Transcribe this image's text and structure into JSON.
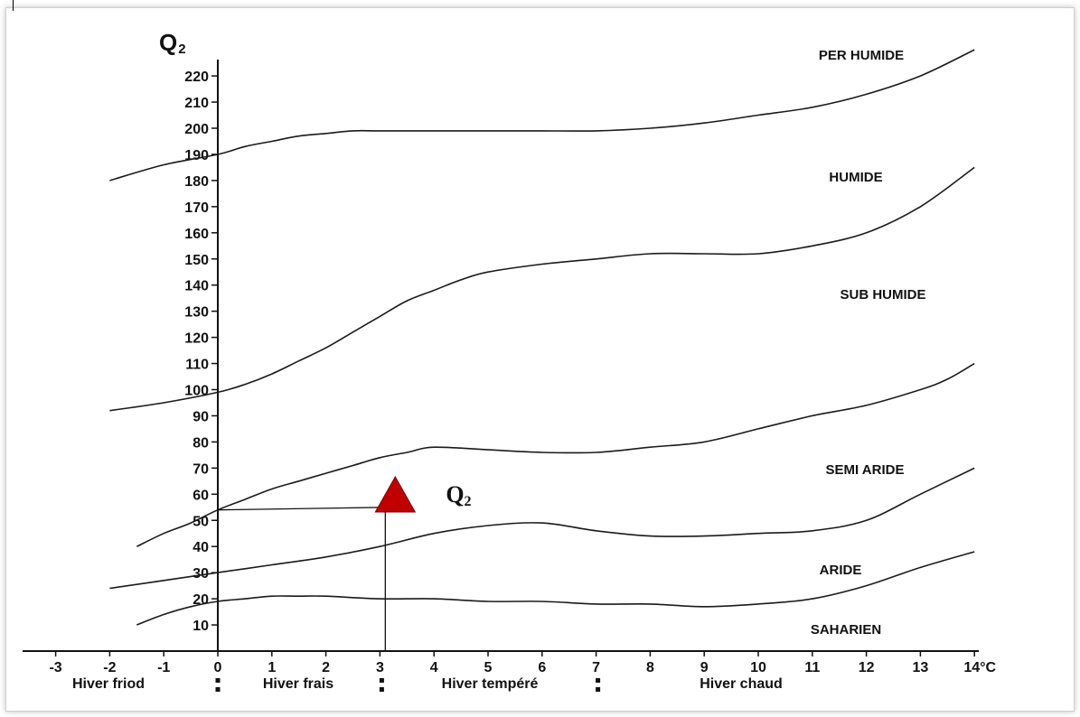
{
  "chart_data": {
    "type": "line",
    "ylabel": "Q",
    "ylabel_sub": "2",
    "x_ticks": [
      "-3",
      "-2",
      "-1",
      "0",
      "1",
      "2",
      "3",
      "4",
      "5",
      "6",
      "7",
      "8",
      "9",
      "10",
      "11",
      "12",
      "13",
      "14°C"
    ],
    "y_ticks": [
      "10",
      "20",
      "30",
      "40",
      "50",
      "60",
      "70",
      "80",
      "90",
      "100",
      "110",
      "120",
      "130",
      "140",
      "150",
      "160",
      "170",
      "180",
      "190",
      "200",
      "210",
      "220"
    ],
    "xlim": [
      -3,
      14
    ],
    "ylim": [
      0,
      220
    ],
    "boundaries": [
      {
        "x": [
          -2,
          -1,
          0,
          0.5,
          1,
          1.5,
          2,
          2.5,
          3,
          4,
          5,
          6,
          7,
          8,
          9,
          10,
          11,
          12,
          13,
          14
        ],
        "y": [
          180,
          186,
          190,
          193,
          195,
          197,
          198,
          199,
          199,
          199,
          199,
          199,
          199,
          200,
          202,
          205,
          208,
          213,
          220,
          230
        ]
      },
      {
        "x": [
          -2,
          -1,
          0,
          0.5,
          1,
          1.5,
          2,
          2.5,
          3,
          3.5,
          4,
          4.5,
          5,
          6,
          7,
          8,
          9,
          10,
          11,
          12,
          13,
          14
        ],
        "y": [
          92,
          95,
          99,
          102,
          106,
          111,
          116,
          122,
          128,
          134,
          138,
          142,
          145,
          148,
          150,
          152,
          152,
          152,
          155,
          160,
          170,
          185
        ]
      },
      {
        "x": [
          -1.5,
          -1,
          -0.5,
          0,
          0.5,
          1,
          1.5,
          2,
          2.5,
          3,
          3.5,
          4,
          5,
          6,
          7,
          8,
          9,
          10,
          11,
          12,
          13,
          13.5,
          14
        ],
        "y": [
          40,
          45,
          49,
          54,
          58,
          62,
          65,
          68,
          71,
          74,
          76,
          78,
          77,
          76,
          76,
          78,
          80,
          85,
          90,
          94,
          100,
          104,
          110
        ]
      },
      {
        "x": [
          -2,
          -1,
          0,
          1,
          2,
          3,
          4,
          5,
          6,
          7,
          8,
          9,
          10,
          11,
          12,
          13,
          14
        ],
        "y": [
          24,
          27,
          30,
          33,
          36,
          40,
          45,
          48,
          49,
          46,
          44,
          44,
          45,
          46,
          50,
          60,
          70
        ]
      },
      {
        "x": [
          -1.5,
          -1,
          -0.5,
          0,
          0.5,
          1,
          1.5,
          2,
          3,
          4,
          5,
          6,
          7,
          8,
          9,
          10,
          11,
          12,
          13,
          14
        ],
        "y": [
          10,
          14,
          17,
          19,
          20,
          21,
          21,
          21,
          20,
          20,
          19,
          19,
          18,
          18,
          17,
          18,
          20,
          25,
          32,
          38
        ]
      }
    ],
    "zones": [
      "PER HUMIDE",
      "HUMIDE",
      "SUB HUMIDE",
      "SEMI ARIDE",
      "ARIDE",
      "SAHARIEN"
    ],
    "seasons": [
      "Hiver friod",
      "Hiver frais",
      "Hiver tempéré",
      "Hiver chaud"
    ],
    "season_separators_x": [
      0,
      3,
      7
    ],
    "marker": {
      "label": "Q",
      "label_sub": "2",
      "x": 3.4,
      "y": 57,
      "ref_y": 54,
      "color": "#c00000"
    }
  }
}
